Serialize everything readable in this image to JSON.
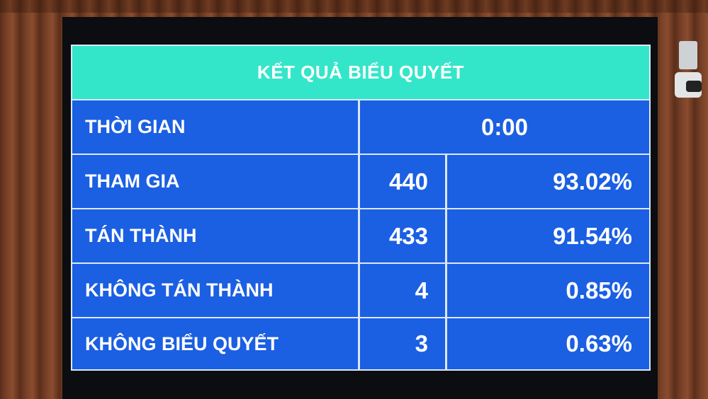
{
  "title": "KẾT QUẢ BIỂU QUYẾT",
  "time": {
    "label": "THỜI GIAN",
    "value": "0:00"
  },
  "rows": [
    {
      "label": "THAM GIA",
      "count": "440",
      "percent": "93.02%"
    },
    {
      "label": "TÁN THÀNH",
      "count": "433",
      "percent": "91.54%"
    },
    {
      "label": "KHÔNG TÁN THÀNH",
      "count": "4",
      "percent": "0.85%"
    },
    {
      "label": "KHÔNG BIỂU QUYẾT",
      "count": "3",
      "percent": "0.63%"
    }
  ],
  "colors": {
    "header": "#34e6c9",
    "cell": "#1b5fe2",
    "text": "#ffffff"
  }
}
